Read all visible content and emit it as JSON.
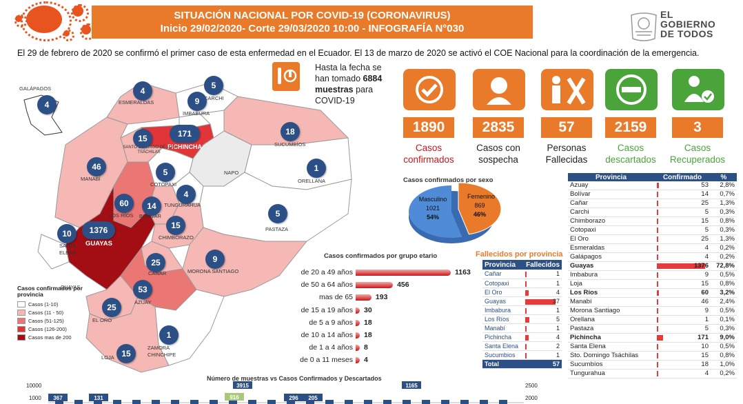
{
  "header": {
    "title": "SITUACIÓN NACIONAL POR  COVID-19 (CORONAVIRUS)",
    "subtitle": "Inicio 29/02/2020- Corte 29/03/2020 10:00  - INFOGRAFÍA N°030"
  },
  "logo": {
    "line1": "EL",
    "line2": "GOBIERNO",
    "line3": "DE TODOS"
  },
  "intro_text": "El 29 de febrero de 2020 se confirmó el primer caso de esta enfermedad en el Ecuador. El 13 de marzo de 2020 se activó el COE Nacional para la coordinación de la emergencia.",
  "samples": {
    "prefix": "Hasta la fecha se han tomado",
    "count": "6884",
    "suffix": "muestras",
    "tail": "para COVID-19"
  },
  "stats": [
    {
      "value": "1890",
      "label": "Casos confirmados",
      "color": "#c8161c",
      "icon": "check-icon"
    },
    {
      "value": "2835",
      "label": "Casos con sospecha",
      "color": "#222222",
      "icon": "doctor-icon"
    },
    {
      "value": "57",
      "label": "Personas Fallecidas",
      "color": "#222222",
      "icon": "deceased-icon"
    },
    {
      "value": "2159",
      "label": "Casos descartados",
      "color": "#4aa43a",
      "icon": "minus-icon"
    },
    {
      "value": "3",
      "label": "Casos Recuperados",
      "color": "#4aa43a",
      "icon": "recovered-icon"
    }
  ],
  "map": {
    "galapagos_label": "GALÁPAGOS",
    "provinces": [
      {
        "name": "ESMERALDAS",
        "cases": "4"
      },
      {
        "name": "CARCHI",
        "cases": "5"
      },
      {
        "name": "IMBABURA",
        "cases": "9"
      },
      {
        "name": "PICHINCHA",
        "cases": "171"
      },
      {
        "name": "SANTO DOMINGO DE LOS TSÁCHILAS",
        "cases": "15"
      },
      {
        "name": "SUCUMBÍOS",
        "cases": "18"
      },
      {
        "name": "MANABÍ",
        "cases": "46"
      },
      {
        "name": "NAPO",
        "cases": ""
      },
      {
        "name": "ORELLANA",
        "cases": "1"
      },
      {
        "name": "COTOPAXI",
        "cases": "5"
      },
      {
        "name": "TUNGURAHUA",
        "cases": "4"
      },
      {
        "name": "LOS RÍOS",
        "cases": "60"
      },
      {
        "name": "BOLÍVAR",
        "cases": "14"
      },
      {
        "name": "PASTAZA",
        "cases": "5"
      },
      {
        "name": "SANTA ELENA",
        "cases": "10"
      },
      {
        "name": "GUAYAS",
        "cases": "1376"
      },
      {
        "name": "CHIMBORAZO",
        "cases": "15"
      },
      {
        "name": "MORONA SANTIAGO",
        "cases": "9"
      },
      {
        "name": "CAÑAR",
        "cases": "25"
      },
      {
        "name": "AZUAY",
        "cases": "53"
      },
      {
        "name": "EL ORO",
        "cases": "25"
      },
      {
        "name": "ZAMORA CHINCHIPE",
        "cases": "1"
      },
      {
        "name": "LOJA",
        "cases": "15"
      },
      {
        "name": "GALÁPAGOS",
        "cases": "4"
      }
    ]
  },
  "legend": {
    "title": "Casos confirmados por provincia",
    "items": [
      {
        "label": "Casos (1-10)",
        "color": "#ffffff"
      },
      {
        "label": "Casos (11 - 50)",
        "color": "#f5b8b5"
      },
      {
        "label": "Casos (51-125)",
        "color": "#eb7774"
      },
      {
        "label": "Casos (126-200)",
        "color": "#e0363a"
      },
      {
        "label": "Casos mas de 200",
        "color": "#a30d14"
      }
    ]
  },
  "sex": {
    "title": "Casos confirmados por sexo",
    "male": {
      "label": "Masculino",
      "count": "1021",
      "pct": "54%",
      "value": 54,
      "color": "#4f8bd6"
    },
    "female": {
      "label": "Femenino",
      "count": "869",
      "pct": "46%",
      "value": 46,
      "color": "#e87a2a"
    }
  },
  "age": {
    "title": "Casos confirmados por grupo etario",
    "groups": [
      {
        "label": "de 20 a 49 años",
        "value": 1163
      },
      {
        "label": "de 50 a 64 años",
        "value": 456
      },
      {
        "label": "mas de 65",
        "value": 193
      },
      {
        "label": "de 15 a 19 años",
        "value": 30
      },
      {
        "label": "de 5 a 9 años",
        "value": 18
      },
      {
        "label": "de 10 a 14 años",
        "value": 18
      },
      {
        "label": "de 1 a 4 años",
        "value": 8
      },
      {
        "label": "de 0 a 11 meses",
        "value": 4
      }
    ]
  },
  "deaths": {
    "title": "Fallecidos por provincia",
    "col_province": "Provincia",
    "col_deaths": "Fallecidos",
    "rows": [
      {
        "province": "Cañar",
        "value": 1
      },
      {
        "province": "Cotopaxi",
        "value": 1
      },
      {
        "province": "El Oro",
        "value": 4
      },
      {
        "province": "Guayas",
        "value": 37
      },
      {
        "province": "Imbabura",
        "value": 1
      },
      {
        "province": "Los Ríos",
        "value": 5
      },
      {
        "province": "Manabí",
        "value": 1
      },
      {
        "province": "Pichincha",
        "value": 4
      },
      {
        "province": "Santa Elena",
        "value": 2
      },
      {
        "province": "Sucumbios",
        "value": 1
      }
    ],
    "total_label": "Total",
    "total": "57"
  },
  "provinces_table": {
    "col_province": "Provincia",
    "col_confirmed": "Confirmado",
    "col_pct": "%",
    "rows": [
      {
        "province": "Azuay",
        "confirmed": 53,
        "pct": "2,8%",
        "hl": false
      },
      {
        "province": "Bolívar",
        "confirmed": 14,
        "pct": "0,7%",
        "hl": false
      },
      {
        "province": "Cañar",
        "confirmed": 25,
        "pct": "1,3%",
        "hl": false
      },
      {
        "province": "Carchi",
        "confirmed": 5,
        "pct": "0,3%",
        "hl": false
      },
      {
        "province": "Chimborazo",
        "confirmed": 15,
        "pct": "0,8%",
        "hl": false
      },
      {
        "province": "Cotopaxi",
        "confirmed": 5,
        "pct": "0,3%",
        "hl": false
      },
      {
        "province": "El Oro",
        "confirmed": 25,
        "pct": "1,3%",
        "hl": false
      },
      {
        "province": "Esmeraldas",
        "confirmed": 4,
        "pct": "0,2%",
        "hl": false
      },
      {
        "province": "Galápagos",
        "confirmed": 4,
        "pct": "0,2%",
        "hl": false
      },
      {
        "province": "Guayas",
        "confirmed": 1376,
        "pct": "72,8%",
        "hl": true
      },
      {
        "province": "Imbabura",
        "confirmed": 9,
        "pct": "0,5%",
        "hl": false
      },
      {
        "province": "Loja",
        "confirmed": 15,
        "pct": "0,8%",
        "hl": false
      },
      {
        "province": "Los Ríos",
        "confirmed": 60,
        "pct": "3,2%",
        "hl": true
      },
      {
        "province": "Manabí",
        "confirmed": 46,
        "pct": "2,4%",
        "hl": false
      },
      {
        "province": "Morona Santiago",
        "confirmed": 9,
        "pct": "0,5%",
        "hl": false
      },
      {
        "province": "Orellana",
        "confirmed": 1,
        "pct": "0,1%",
        "hl": false
      },
      {
        "province": "Pastaza",
        "confirmed": 5,
        "pct": "0,3%",
        "hl": false
      },
      {
        "province": "Pichincha",
        "confirmed": 171,
        "pct": "9,0%",
        "hl": true
      },
      {
        "province": "Santa Elena",
        "confirmed": 10,
        "pct": "0,5%",
        "hl": false
      },
      {
        "province": "Sto. Domingo Tsáchilas",
        "confirmed": 15,
        "pct": "0,8%",
        "hl": false
      },
      {
        "province": "Sucumbíos",
        "confirmed": 18,
        "pct": "1,0%",
        "hl": false
      },
      {
        "province": "Tungurahua",
        "confirmed": 4,
        "pct": "0,2%",
        "hl": false
      }
    ]
  },
  "chart_data": {
    "type": "bar",
    "title": "Número de muestras vs Casos Confirmados y Descartados",
    "yticks_left": [
      "10000",
      "1000"
    ],
    "yticks_right": [
      "2500",
      "2000"
    ],
    "visible_labels": [
      "367",
      "131",
      "3915",
      "916",
      "296",
      "205",
      "1165"
    ]
  }
}
